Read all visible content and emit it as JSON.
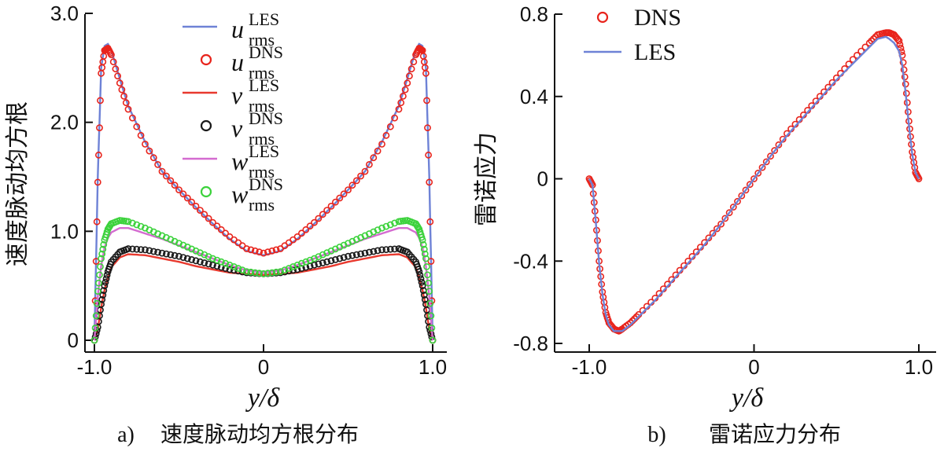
{
  "chart_data": [
    {
      "id": "a",
      "type": "scatter",
      "caption_tag": "a)",
      "caption_text": "速度脉动均方根分布",
      "xlabel": "y/δ",
      "ylabel": "速度脉动均方根",
      "xlim": [
        -1.0,
        1.0
      ],
      "ylim": [
        0,
        3.0
      ],
      "xticks": [
        -1.0,
        0,
        1.0
      ],
      "xtick_labels": [
        "-1.0",
        "0",
        "1.0"
      ],
      "yticks": [
        0,
        1.0,
        2.0,
        3.0
      ],
      "ytick_labels": [
        "0",
        "1.0",
        "2.0",
        "3.0"
      ],
      "legend_position": "top-center",
      "series": [
        {
          "name": "u_rms LES",
          "label_main": "u",
          "label_sup": "LES",
          "label_sub": "rms",
          "style": "line",
          "color": "#6e82d6",
          "x": [
            -1.0,
            -0.98,
            -0.96,
            -0.94,
            -0.92,
            -0.9,
            -0.85,
            -0.8,
            -0.7,
            -0.6,
            -0.5,
            -0.4,
            -0.3,
            -0.2,
            -0.1,
            0,
            0.1,
            0.2,
            0.3,
            0.4,
            0.5,
            0.6,
            0.7,
            0.8,
            0.85,
            0.9,
            0.92,
            0.94,
            0.96,
            0.98,
            1.0
          ],
          "y": [
            0,
            1.5,
            2.5,
            2.7,
            2.72,
            2.66,
            2.4,
            2.15,
            1.82,
            1.55,
            1.38,
            1.22,
            1.07,
            0.93,
            0.82,
            0.78,
            0.82,
            0.93,
            1.07,
            1.22,
            1.38,
            1.55,
            1.82,
            2.15,
            2.4,
            2.66,
            2.72,
            2.7,
            2.5,
            1.5,
            0
          ]
        },
        {
          "name": "u_rms DNS",
          "label_main": "u",
          "label_sup": "DNS",
          "label_sub": "rms",
          "style": "marker",
          "color": "#e8241c",
          "x": [
            -1.0,
            -0.98,
            -0.96,
            -0.94,
            -0.92,
            -0.9,
            -0.85,
            -0.8,
            -0.7,
            -0.6,
            -0.5,
            -0.4,
            -0.3,
            -0.2,
            -0.1,
            0,
            0.1,
            0.2,
            0.3,
            0.4,
            0.5,
            0.6,
            0.7,
            0.8,
            0.85,
            0.9,
            0.92,
            0.94,
            0.96,
            0.98,
            1.0
          ],
          "y": [
            0,
            1.45,
            2.45,
            2.66,
            2.68,
            2.62,
            2.36,
            2.12,
            1.8,
            1.55,
            1.38,
            1.23,
            1.08,
            0.95,
            0.84,
            0.8,
            0.84,
            0.95,
            1.08,
            1.23,
            1.38,
            1.55,
            1.8,
            2.12,
            2.36,
            2.62,
            2.68,
            2.66,
            2.45,
            1.45,
            0
          ]
        },
        {
          "name": "v_rms LES",
          "label_main": "v",
          "label_sup": "LES",
          "label_sub": "rms",
          "style": "line",
          "color": "#e8392e",
          "x": [
            -1.0,
            -0.98,
            -0.96,
            -0.94,
            -0.92,
            -0.9,
            -0.85,
            -0.8,
            -0.7,
            -0.6,
            -0.5,
            -0.4,
            -0.3,
            -0.2,
            -0.1,
            0,
            0.1,
            0.2,
            0.3,
            0.4,
            0.5,
            0.6,
            0.7,
            0.8,
            0.85,
            0.9,
            0.92,
            0.94,
            0.96,
            0.98,
            1.0
          ],
          "y": [
            0,
            0.1,
            0.3,
            0.46,
            0.58,
            0.67,
            0.76,
            0.79,
            0.78,
            0.75,
            0.72,
            0.68,
            0.65,
            0.62,
            0.61,
            0.6,
            0.61,
            0.62,
            0.65,
            0.68,
            0.72,
            0.75,
            0.78,
            0.79,
            0.76,
            0.67,
            0.58,
            0.46,
            0.3,
            0.1,
            0
          ]
        },
        {
          "name": "v_rms DNS",
          "label_main": "v",
          "label_sup": "DNS",
          "label_sub": "rms",
          "style": "marker",
          "color": "#1a1a1a",
          "x": [
            -1.0,
            -0.98,
            -0.96,
            -0.94,
            -0.92,
            -0.9,
            -0.85,
            -0.8,
            -0.7,
            -0.6,
            -0.5,
            -0.4,
            -0.3,
            -0.2,
            -0.1,
            0,
            0.1,
            0.2,
            0.3,
            0.4,
            0.5,
            0.6,
            0.7,
            0.8,
            0.85,
            0.9,
            0.92,
            0.94,
            0.96,
            0.98,
            1.0
          ],
          "y": [
            0,
            0.12,
            0.33,
            0.5,
            0.63,
            0.72,
            0.81,
            0.84,
            0.83,
            0.8,
            0.77,
            0.73,
            0.69,
            0.65,
            0.62,
            0.61,
            0.62,
            0.65,
            0.69,
            0.73,
            0.77,
            0.8,
            0.83,
            0.84,
            0.81,
            0.72,
            0.63,
            0.5,
            0.33,
            0.12,
            0
          ]
        },
        {
          "name": "w_rms LES",
          "label_main": "w",
          "label_sup": "LES",
          "label_sub": "rms",
          "style": "line",
          "color": "#d46bd0",
          "x": [
            -1.0,
            -0.98,
            -0.96,
            -0.94,
            -0.92,
            -0.9,
            -0.85,
            -0.8,
            -0.7,
            -0.6,
            -0.5,
            -0.4,
            -0.3,
            -0.2,
            -0.1,
            0,
            0.1,
            0.2,
            0.3,
            0.4,
            0.5,
            0.6,
            0.7,
            0.8,
            0.85,
            0.9,
            0.92,
            0.94,
            0.96,
            0.98,
            1.0
          ],
          "y": [
            0,
            0.4,
            0.68,
            0.85,
            0.94,
            0.99,
            1.03,
            1.03,
            0.98,
            0.93,
            0.87,
            0.81,
            0.75,
            0.69,
            0.64,
            0.62,
            0.64,
            0.69,
            0.75,
            0.81,
            0.87,
            0.93,
            0.98,
            1.03,
            1.03,
            0.99,
            0.94,
            0.85,
            0.68,
            0.4,
            0
          ]
        },
        {
          "name": "w_rms DNS",
          "label_main": "w",
          "label_sup": "DNS",
          "label_sub": "rms",
          "style": "marker",
          "color": "#3cd23c",
          "x": [
            -1.0,
            -0.98,
            -0.96,
            -0.94,
            -0.92,
            -0.9,
            -0.85,
            -0.8,
            -0.7,
            -0.6,
            -0.5,
            -0.4,
            -0.3,
            -0.2,
            -0.1,
            0,
            0.1,
            0.2,
            0.3,
            0.4,
            0.5,
            0.6,
            0.7,
            0.8,
            0.85,
            0.9,
            0.92,
            0.94,
            0.96,
            0.98,
            1.0
          ],
          "y": [
            0,
            0.45,
            0.75,
            0.92,
            1.02,
            1.07,
            1.1,
            1.09,
            1.03,
            0.96,
            0.89,
            0.82,
            0.75,
            0.69,
            0.63,
            0.61,
            0.63,
            0.69,
            0.75,
            0.82,
            0.89,
            0.96,
            1.03,
            1.09,
            1.1,
            1.07,
            1.02,
            0.92,
            0.75,
            0.45,
            0
          ]
        }
      ]
    },
    {
      "id": "b",
      "type": "scatter",
      "caption_tag": "b)",
      "caption_text": "雷诺应力分布",
      "xlabel": "y/δ",
      "ylabel": "雷诺应力",
      "xlim": [
        -1.0,
        1.0
      ],
      "ylim": [
        -0.8,
        0.8
      ],
      "xticks": [
        -1.0,
        0,
        1.0
      ],
      "xtick_labels": [
        "-1.0",
        "0",
        "1.0"
      ],
      "yticks": [
        -0.8,
        -0.4,
        0,
        0.4,
        0.8
      ],
      "ytick_labels": [
        "-0.8",
        "-0.4",
        "0",
        "0.4",
        "0.8"
      ],
      "legend_position": "top-left",
      "series": [
        {
          "name": "DNS",
          "label_main": "DNS",
          "style": "marker",
          "color": "#e8241c",
          "x": [
            -1.0,
            -0.98,
            -0.96,
            -0.94,
            -0.92,
            -0.9,
            -0.88,
            -0.85,
            -0.82,
            -0.8,
            -0.75,
            -0.7,
            -0.6,
            -0.5,
            -0.4,
            -0.3,
            -0.2,
            -0.1,
            0,
            0.1,
            0.2,
            0.3,
            0.4,
            0.5,
            0.6,
            0.7,
            0.75,
            0.8,
            0.82,
            0.85,
            0.88,
            0.9,
            0.92,
            0.94,
            0.96,
            0.98,
            1.0
          ],
          "y": [
            0,
            -0.03,
            -0.2,
            -0.4,
            -0.55,
            -0.65,
            -0.7,
            -0.73,
            -0.74,
            -0.73,
            -0.7,
            -0.66,
            -0.58,
            -0.49,
            -0.4,
            -0.31,
            -0.22,
            -0.11,
            0,
            0.11,
            0.22,
            0.31,
            0.4,
            0.49,
            0.58,
            0.66,
            0.7,
            0.71,
            0.71,
            0.7,
            0.67,
            0.6,
            0.46,
            0.28,
            0.13,
            0.03,
            0
          ]
        },
        {
          "name": "LES",
          "label_main": "LES",
          "style": "line",
          "color": "#6e82d6",
          "x": [
            -1.0,
            -0.98,
            -0.96,
            -0.94,
            -0.92,
            -0.9,
            -0.88,
            -0.85,
            -0.82,
            -0.8,
            -0.75,
            -0.7,
            -0.6,
            -0.5,
            -0.4,
            -0.3,
            -0.2,
            -0.1,
            0,
            0.1,
            0.2,
            0.3,
            0.4,
            0.5,
            0.6,
            0.7,
            0.75,
            0.8,
            0.82,
            0.85,
            0.88,
            0.9,
            0.92,
            0.94,
            0.96,
            0.98,
            1.0
          ],
          "y": [
            0,
            -0.03,
            -0.21,
            -0.41,
            -0.56,
            -0.66,
            -0.71,
            -0.74,
            -0.74,
            -0.74,
            -0.71,
            -0.67,
            -0.59,
            -0.5,
            -0.41,
            -0.32,
            -0.22,
            -0.11,
            0,
            0.11,
            0.21,
            0.3,
            0.39,
            0.48,
            0.56,
            0.64,
            0.68,
            0.69,
            0.68,
            0.66,
            0.62,
            0.55,
            0.42,
            0.26,
            0.12,
            0.03,
            0
          ]
        }
      ]
    }
  ]
}
